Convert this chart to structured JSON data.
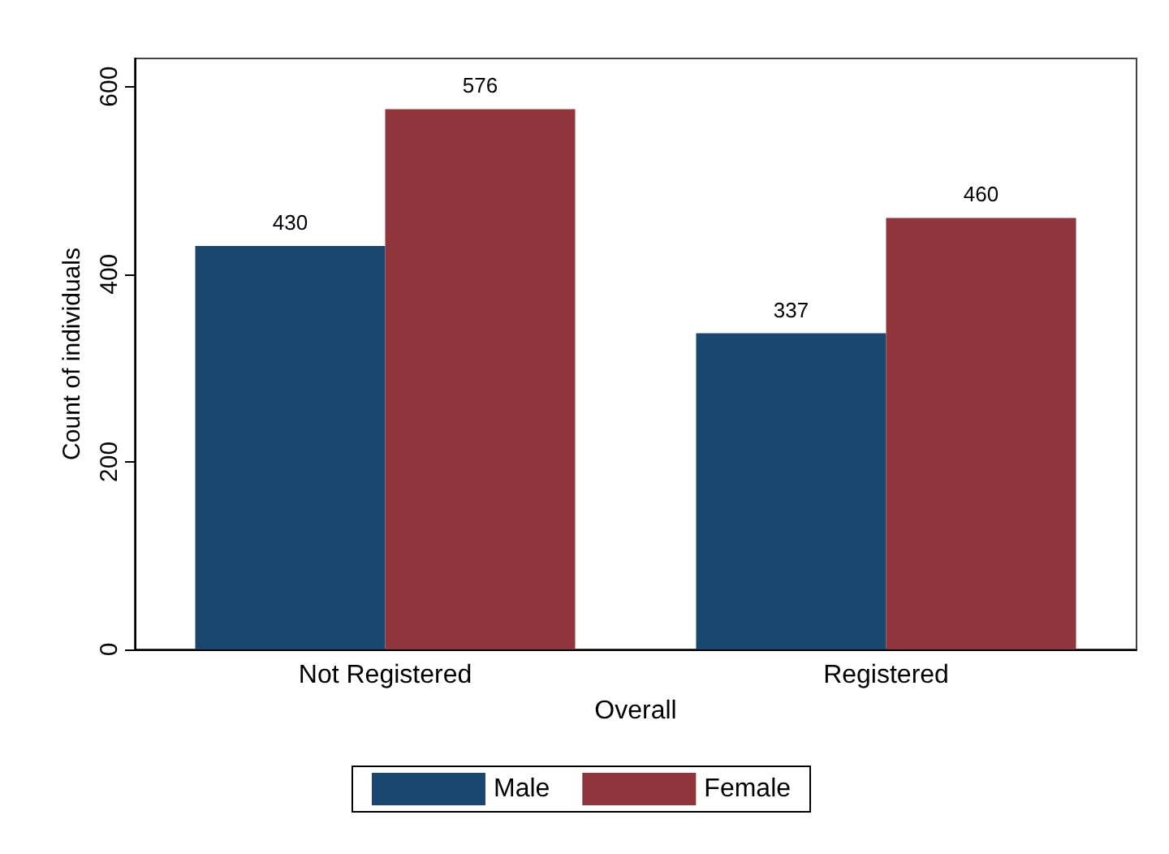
{
  "chart_data": {
    "type": "bar",
    "xlabel": "Overall",
    "ylabel": "Count of individuals",
    "categories": [
      "Not Registered",
      "Registered"
    ],
    "series": [
      {
        "name": "Male",
        "color": "#1a476f",
        "values": [
          430,
          337
        ]
      },
      {
        "name": "Female",
        "color": "#90353b",
        "values": [
          576,
          460
        ]
      }
    ],
    "ylim": [
      0,
      630
    ],
    "yticks": [
      0,
      200,
      400,
      600
    ],
    "grid": false,
    "legend": "bottom",
    "data_labels": true
  }
}
